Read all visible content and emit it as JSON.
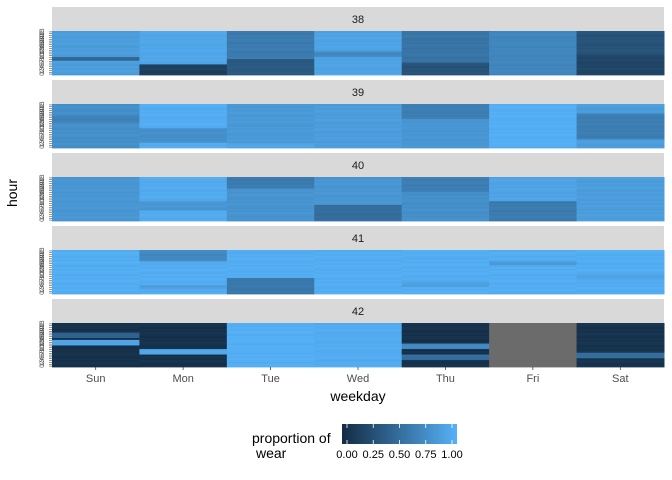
{
  "chart_data": {
    "type": "heatmap",
    "xlabel": "weekday",
    "ylabel": "hour",
    "categories": [
      "Sun",
      "Mon",
      "Tue",
      "Wed",
      "Thu",
      "Fri",
      "Sat"
    ],
    "hour_ticks": [
      "0",
      "1",
      "2",
      "3",
      "4",
      "5",
      "6",
      "7",
      "8",
      "9",
      "10",
      "11",
      "12",
      "13",
      "14",
      "15",
      "16",
      "17",
      "18",
      "19",
      "20",
      "21",
      "22",
      "23"
    ],
    "facet_variable": "week",
    "legend": {
      "title": [
        "proportion of",
        "wear"
      ],
      "position": "bottom",
      "ticks": [
        "0.00",
        "0.25",
        "0.50",
        "0.75",
        "1.00"
      ],
      "range": [
        0,
        1
      ],
      "low_color": "#132B43",
      "high_color": "#56B1F7",
      "na_color": "#6B6B6B"
    },
    "panels": [
      {
        "label": "38",
        "base": [
          0.85,
          0.92,
          0.6,
          0.9,
          0.55,
          0.68,
          0.3
        ],
        "events": [
          [
            1,
            0,
            5,
            0.15
          ],
          [
            2,
            0,
            8,
            0.35
          ],
          [
            4,
            0,
            6,
            0.3
          ],
          [
            6,
            0,
            10,
            0.2
          ],
          [
            0,
            8,
            9,
            0.45
          ],
          [
            3,
            10,
            12,
            0.7
          ]
        ]
      },
      {
        "label": "39",
        "base": [
          0.75,
          0.97,
          0.82,
          0.85,
          0.8,
          0.98,
          0.85
        ],
        "events": [
          [
            1,
            3,
            10,
            0.75
          ],
          [
            6,
            5,
            18,
            0.62
          ],
          [
            4,
            16,
            23,
            0.62
          ],
          [
            0,
            14,
            17,
            0.65
          ],
          [
            2,
            0,
            2,
            0.92
          ]
        ]
      },
      {
        "label": "40",
        "base": [
          0.8,
          0.95,
          0.78,
          0.8,
          0.75,
          0.9,
          0.85
        ],
        "events": [
          [
            3,
            0,
            8,
            0.5
          ],
          [
            5,
            0,
            10,
            0.6
          ],
          [
            2,
            18,
            23,
            0.6
          ],
          [
            4,
            16,
            23,
            0.62
          ],
          [
            1,
            6,
            10,
            0.8
          ]
        ]
      },
      {
        "label": "41",
        "base": [
          0.97,
          0.97,
          0.97,
          0.97,
          0.97,
          0.97,
          0.97
        ],
        "events": [
          [
            2,
            0,
            8,
            0.58
          ],
          [
            1,
            18,
            23,
            0.7
          ],
          [
            4,
            4,
            6,
            0.88
          ],
          [
            5,
            16,
            17,
            0.82
          ],
          [
            1,
            3,
            4,
            0.85
          ],
          [
            6,
            8,
            10,
            0.9
          ]
        ]
      },
      {
        "label": "42",
        "base": [
          0.05,
          0.05,
          0.98,
          0.96,
          0.05,
          null,
          0.06
        ],
        "events": [
          [
            0,
            12,
            14,
            0.9
          ],
          [
            1,
            7,
            9,
            0.92
          ],
          [
            4,
            10,
            12,
            0.7
          ],
          [
            4,
            4,
            6,
            0.5
          ],
          [
            6,
            5,
            7,
            0.5
          ],
          [
            0,
            16,
            18,
            0.4
          ]
        ]
      }
    ]
  }
}
